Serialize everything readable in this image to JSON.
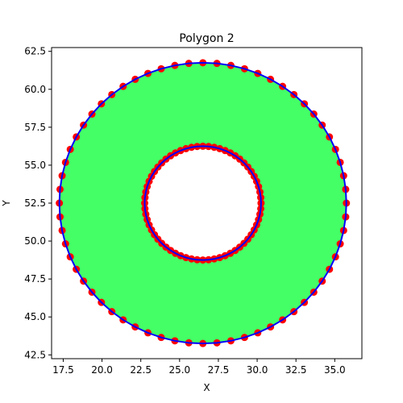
{
  "chart_data": {
    "type": "scatter",
    "title": "Polygon 2",
    "xlabel": "X",
    "ylabel": "Y",
    "xlim": [
      16.75,
      36.75
    ],
    "ylim": [
      42.25,
      62.75
    ],
    "xticks": [
      17.5,
      20.0,
      22.5,
      25.0,
      27.5,
      30.0,
      32.5,
      35.0
    ],
    "yticks": [
      42.5,
      45.0,
      47.5,
      50.0,
      52.5,
      55.0,
      57.5,
      60.0,
      62.5
    ],
    "xtick_labels": [
      "17.5",
      "20.0",
      "22.5",
      "25.0",
      "27.5",
      "30.0",
      "32.5",
      "35.0"
    ],
    "ytick_labels": [
      "42.5",
      "45.0",
      "47.5",
      "50.0",
      "52.5",
      "55.0",
      "57.5",
      "60.0",
      "62.5"
    ],
    "grid": false,
    "polygon": {
      "center": [
        26.5,
        52.5
      ],
      "outer_radius": 9.25,
      "inner_radius": 3.75,
      "fill_color": "#44ff66",
      "edge_color": "#0000ff",
      "vertex_color": "#ff0000"
    },
    "outer_ring_point_count": 64,
    "inner_ring_point_count": 64
  }
}
